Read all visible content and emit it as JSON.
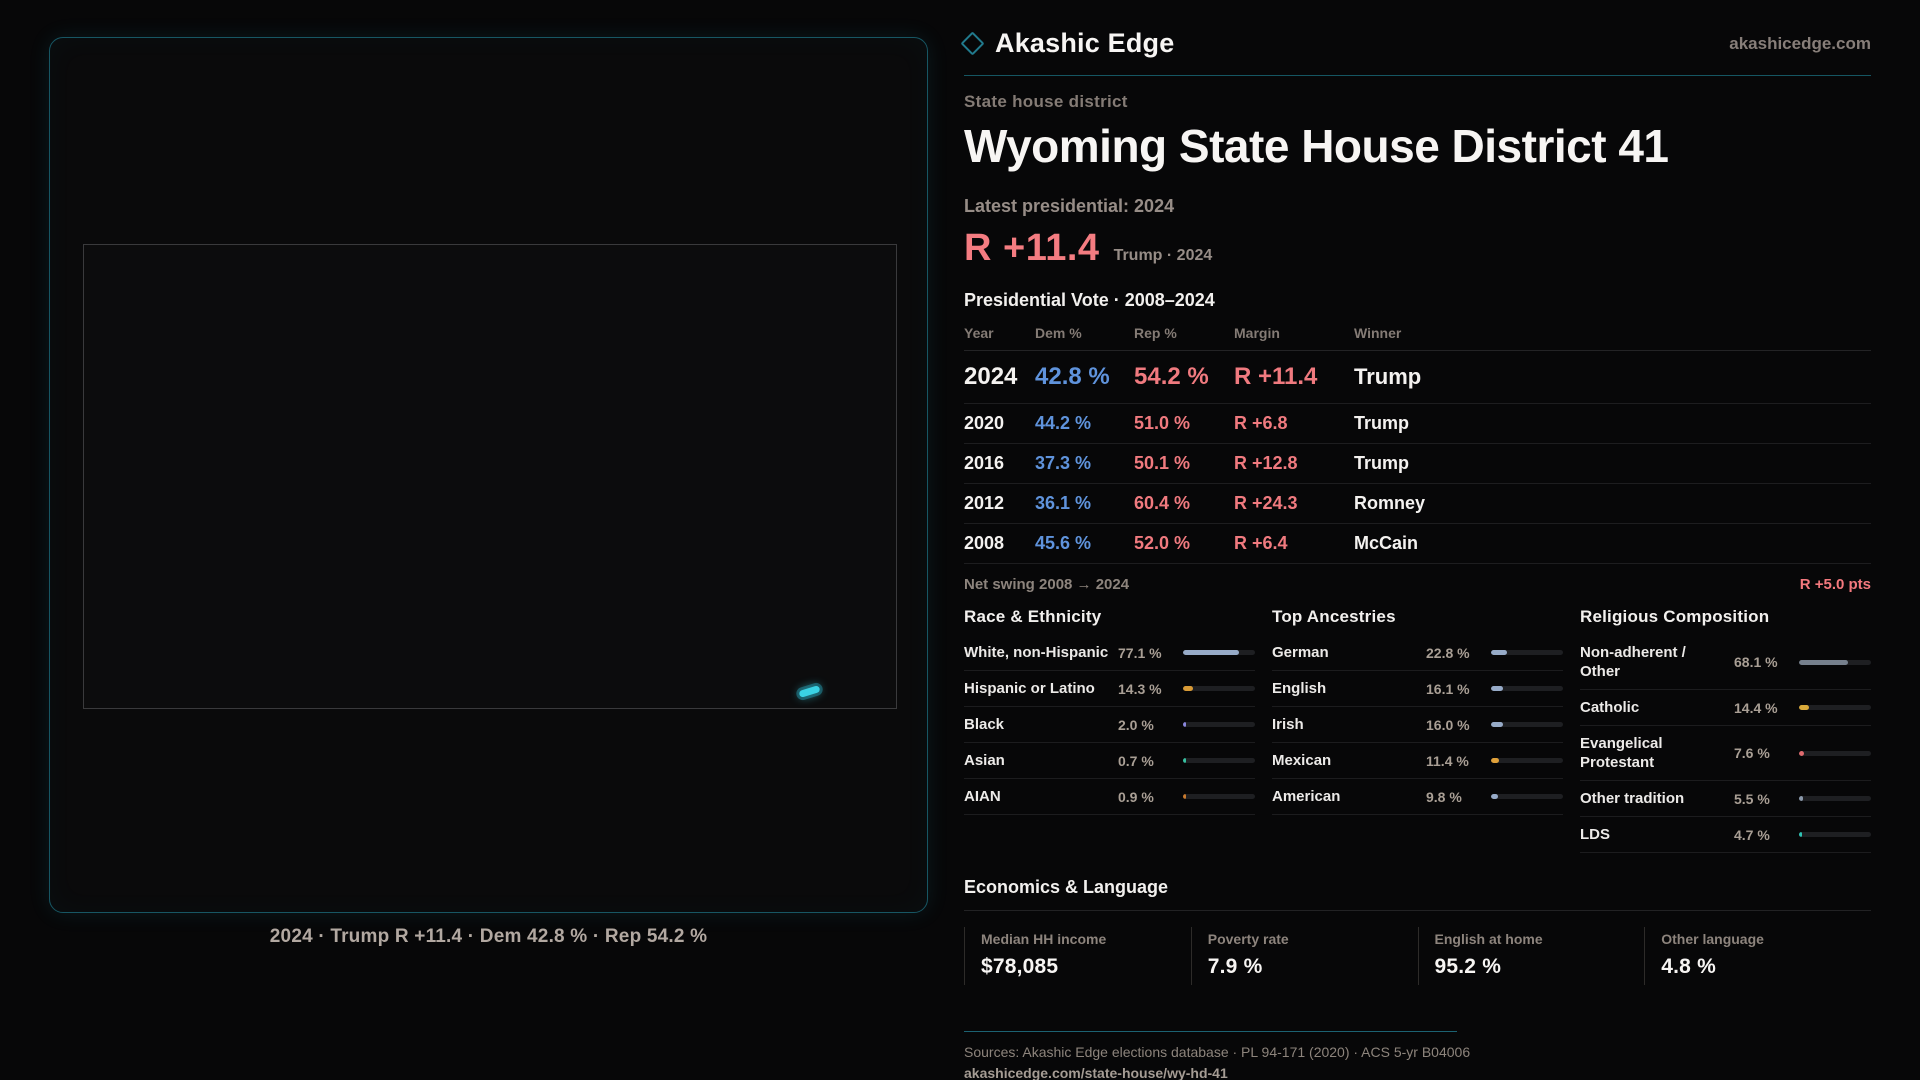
{
  "brand": {
    "name": "Akashic Edge",
    "domain": "akashicedge.com"
  },
  "page": {
    "kicker": "State house district",
    "title": "Wyoming State House District 41",
    "latest_label": "Latest presidential: 2024",
    "margin_big": "R +11.4",
    "margin_context": "Trump · 2024",
    "table_title": "Presidential Vote · 2008–2024",
    "net_swing_label": "Net swing 2008 → 2024",
    "net_swing_value": "R +5.0 pts"
  },
  "map": {
    "caption": "2024 · Trump R +11.4 · Dem 42.8 % · Rep 54.2 %"
  },
  "vote_table": {
    "columns": [
      "Year",
      "Dem %",
      "Rep %",
      "Margin",
      "Winner"
    ],
    "rows": [
      {
        "year": "2024",
        "dem": "42.8 %",
        "rep": "54.2 %",
        "margin": "R +11.4",
        "winner": "Trump"
      },
      {
        "year": "2020",
        "dem": "44.2 %",
        "rep": "51.0 %",
        "margin": "R +6.8",
        "winner": "Trump"
      },
      {
        "year": "2016",
        "dem": "37.3 %",
        "rep": "50.1 %",
        "margin": "R +12.8",
        "winner": "Trump"
      },
      {
        "year": "2012",
        "dem": "36.1 %",
        "rep": "60.4 %",
        "margin": "R +24.3",
        "winner": "Romney"
      },
      {
        "year": "2008",
        "dem": "45.6 %",
        "rep": "52.0 %",
        "margin": "R +6.4",
        "winner": "McCain"
      }
    ]
  },
  "demographics": [
    {
      "title": "Race & Ethnicity",
      "rows": [
        {
          "label": "White, non-Hispanic",
          "value": "77.1 %",
          "pct": 77.1,
          "color": "#97abc8"
        },
        {
          "label": "Hispanic or Latino",
          "value": "14.3 %",
          "pct": 14.3,
          "color": "#d99b36"
        },
        {
          "label": "Black",
          "value": "2.0 %",
          "pct": 2.0,
          "color": "#8a87dd"
        },
        {
          "label": "Asian",
          "value": "0.7 %",
          "pct": 0.7,
          "color": "#37c0a0"
        },
        {
          "label": "AIAN",
          "value": "0.9 %",
          "pct": 0.9,
          "color": "#c97a2e"
        }
      ]
    },
    {
      "title": "Top Ancestries",
      "rows": [
        {
          "label": "German",
          "value": "22.8 %",
          "pct": 22.8,
          "color": "#97abc8"
        },
        {
          "label": "English",
          "value": "16.1 %",
          "pct": 16.1,
          "color": "#97abc8"
        },
        {
          "label": "Irish",
          "value": "16.0 %",
          "pct": 16.0,
          "color": "#97abc8"
        },
        {
          "label": "Mexican",
          "value": "11.4 %",
          "pct": 11.4,
          "color": "#e0a13a"
        },
        {
          "label": "American",
          "value": "9.8 %",
          "pct": 9.8,
          "color": "#97abc8"
        }
      ]
    },
    {
      "title": "Religious Composition",
      "rows": [
        {
          "label": "Non-adherent / Other",
          "value": "68.1 %",
          "pct": 68.1,
          "color": "#76808d"
        },
        {
          "label": "Catholic",
          "value": "14.4 %",
          "pct": 14.4,
          "color": "#d9a93a"
        },
        {
          "label": "Evangelical Protestant",
          "value": "7.6 %",
          "pct": 7.6,
          "color": "#e06b6f"
        },
        {
          "label": "Other tradition",
          "value": "5.5 %",
          "pct": 5.5,
          "color": "#8b99ab"
        },
        {
          "label": "LDS",
          "value": "4.7 %",
          "pct": 4.7,
          "color": "#2fc3b4"
        }
      ]
    }
  ],
  "economics": {
    "title": "Economics & Language",
    "stats": [
      {
        "label": "Median HH income",
        "value": "$78,085"
      },
      {
        "label": "Poverty rate",
        "value": "7.9 %"
      },
      {
        "label": "English at home",
        "value": "95.2 %"
      },
      {
        "label": "Other language",
        "value": "4.8 %"
      }
    ]
  },
  "footer": {
    "sources": "Sources: Akashic Edge elections database · PL 94-171 (2020) · ACS 5-yr B04006",
    "permalink": "akashicedge.com/state-house/wy-hd-41"
  },
  "colors": {
    "accent_teal": "#2ec7dd",
    "dem_blue": "#5f93dc",
    "rep_red": "#f47c81",
    "background": "#070708"
  }
}
